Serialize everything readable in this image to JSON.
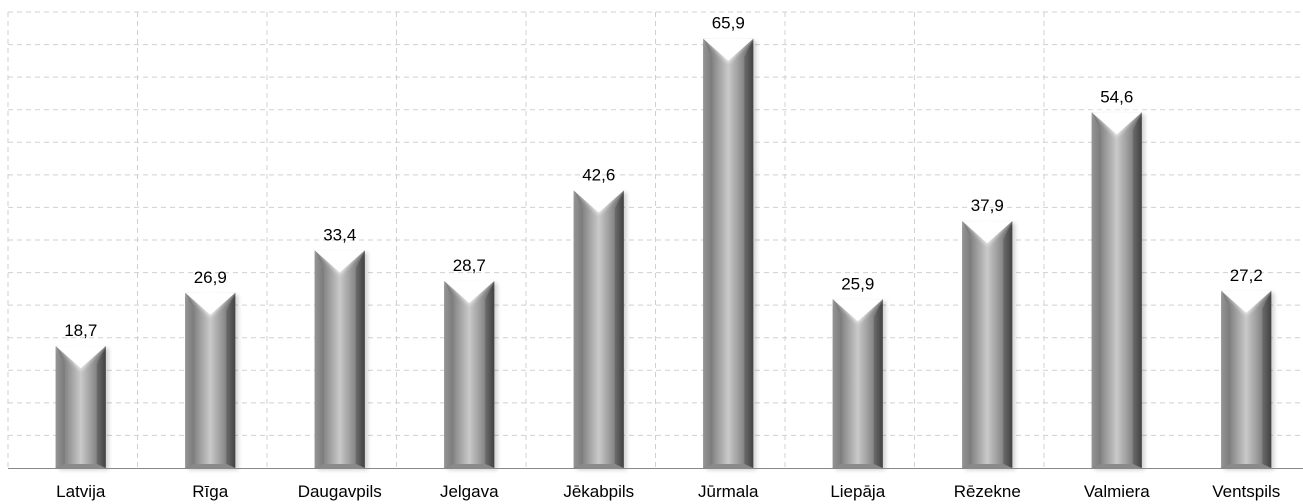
{
  "chart_data": {
    "type": "bar",
    "categories": [
      "Latvija",
      "Rīga",
      "Daugavpils",
      "Jelgava",
      "Jēkabpils",
      "Jūrmala",
      "Liepāja",
      "Rēzekne",
      "Valmiera",
      "Ventspils"
    ],
    "values": [
      18.7,
      26.9,
      33.4,
      28.7,
      42.6,
      65.9,
      25.9,
      37.9,
      54.6,
      27.2
    ],
    "value_labels": [
      "18,7",
      "26,9",
      "33,4",
      "28,7",
      "42,6",
      "65,9",
      "25,9",
      "37,9",
      "54,6",
      "27,2"
    ],
    "title": "",
    "xlabel": "",
    "ylabel": "",
    "ylim": [
      0,
      70
    ],
    "grid": true,
    "legend": "none",
    "colors": {
      "bar_dark": "#6e6e6e",
      "bar_mid": "#a9a9a9",
      "bar_light": "#d6d6d6",
      "grid": "#d0d0d0",
      "axis": "#888888"
    }
  }
}
